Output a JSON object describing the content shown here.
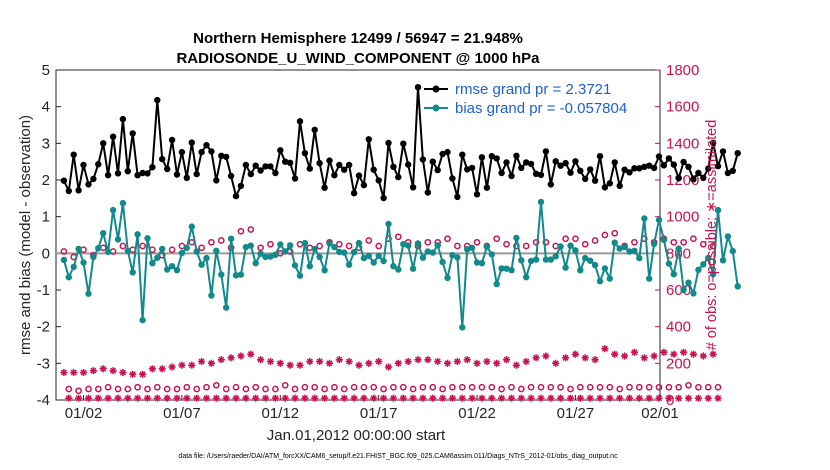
{
  "chart_data": {
    "type": "line",
    "title_line1": "Northern Hemisphere 12499 / 56947 = 21.948%",
    "title_line2": "RADIOSONDE_U_WIND_COMPONENT @ 1000 hPa",
    "ylabel_left": "rmse and bias (model - observation)",
    "ylabel_right": "# of obs: o=possible; ∗=assimilated",
    "xlabel": "Jan.01,2012 00:00:00 start",
    "footer": "data file: /Users/raeder/DAI/ATM_forcXX/CAM6_setup/f.e21.FHIST_BGC.f09_025.CAM6assim.011/Diags_NTrS_2012-01/obs_diag_output.nc",
    "ylim_left": [
      -4,
      5
    ],
    "ylim_right": [
      0,
      1800
    ],
    "xlim": [
      0.6,
      31.3
    ],
    "left_ticks": [
      "-4",
      "-3",
      "-2",
      "-1",
      "0",
      "1",
      "2",
      "3",
      "4",
      "5"
    ],
    "right_ticks": [
      "0",
      "200",
      "400",
      "600",
      "800",
      "1000",
      "1200",
      "1400",
      "1600",
      "1800"
    ],
    "x_tick_labels": [
      "01/02",
      "01/07",
      "01/12",
      "01/17",
      "01/22",
      "01/27",
      "02/01"
    ],
    "x_tick_days": [
      2,
      7,
      12,
      17,
      22,
      27,
      32
    ],
    "x_day_start": 1,
    "x_day_step": 0.25,
    "series": [
      {
        "name": "rmse grand pr = 2.3721",
        "axis": "left",
        "color": "#000000",
        "marker": "dot",
        "values": [
          1.98,
          1.7,
          2.69,
          1.72,
          2.41,
          1.88,
          2.03,
          2.43,
          3.0,
          2.13,
          3.18,
          2.18,
          3.66,
          2.24,
          3.27,
          2.13,
          2.19,
          2.18,
          2.35,
          4.18,
          2.57,
          2.3,
          3.09,
          2.15,
          2.76,
          2.06,
          3.02,
          2.16,
          2.76,
          2.95,
          2.78,
          1.99,
          2.66,
          2.63,
          2.11,
          1.56,
          1.84,
          2.41,
          2.16,
          2.39,
          2.26,
          2.37,
          2.37,
          2.19,
          2.81,
          2.5,
          2.47,
          2.04,
          3.6,
          2.73,
          2.31,
          3.37,
          2.46,
          1.79,
          2.53,
          2.13,
          2.41,
          2.28,
          2.41,
          1.64,
          2.12,
          1.86,
          3.11,
          2.28,
          1.99,
          1.51,
          3.01,
          2.36,
          2.08,
          2.99,
          2.42,
          1.8,
          4.53,
          2.56,
          1.66,
          2.5,
          2.27,
          2.71,
          2.76,
          2.04,
          1.54,
          2.69,
          2.29,
          2.33,
          1.61,
          2.62,
          1.79,
          2.65,
          2.59,
          2.19,
          2.48,
          2.11,
          2.66,
          2.33,
          2.48,
          2.44,
          2.17,
          2.14,
          2.78,
          1.88,
          2.51,
          2.39,
          2.46,
          2.2,
          2.51,
          2.25,
          2.03,
          2.29,
          1.98,
          2.65,
          1.8,
          1.91,
          2.48,
          1.84,
          2.28,
          2.21,
          2.32,
          2.32,
          2.36,
          2.39,
          2.33,
          2.64,
          2.4,
          2.59,
          2.42,
          2.05,
          2.49,
          2.36,
          2.02,
          2.19,
          2.06,
          2.31,
          3.01,
          2.38,
          2.78,
          2.19,
          2.25,
          2.73
        ]
      },
      {
        "name": "bias grand pr = -0.057804",
        "axis": "left",
        "color": "#138a8a",
        "marker": "dot",
        "values": [
          -0.18,
          -0.65,
          -0.37,
          0.12,
          -0.25,
          -1.1,
          -0.1,
          0.14,
          0.55,
          0.04,
          1.18,
          0.38,
          1.37,
          0.07,
          -0.52,
          0.52,
          -1.82,
          0.41,
          -0.27,
          -0.12,
          0.12,
          -0.44,
          -0.35,
          -0.46,
          0.01,
          0.15,
          0.73,
          0.05,
          -0.31,
          -0.13,
          -1.15,
          0.07,
          -0.58,
          -1.48,
          0.4,
          -0.6,
          -0.58,
          0.17,
          0.21,
          -0.27,
          -0.01,
          -0.1,
          -0.09,
          -0.04,
          0.24,
          0.05,
          0.22,
          -0.33,
          -0.61,
          0.28,
          -0.35,
          0.12,
          -0.1,
          -0.46,
          0.27,
          0.17,
          0.04,
          0.02,
          -0.31,
          0.03,
          0.28,
          -0.13,
          -0.07,
          -0.25,
          -0.07,
          -0.21,
          0.8,
          -0.35,
          -0.44,
          0.25,
          0.21,
          -0.42,
          0.27,
          -0.12,
          0.05,
          0.02,
          0.22,
          -0.24,
          -0.67,
          -0.05,
          -0.11,
          -2.02,
          0.11,
          0.15,
          -0.25,
          -0.27,
          0.18,
          -0.03,
          -0.84,
          -0.41,
          -0.42,
          -0.46,
          0.42,
          -0.19,
          -0.65,
          -0.21,
          -0.17,
          1.4,
          -0.17,
          -0.17,
          -0.08,
          0.19,
          -0.39,
          0.21,
          0.08,
          -0.46,
          -0.13,
          -0.2,
          -0.32,
          -0.76,
          -0.41,
          -0.69,
          0.29,
          0.13,
          0.17,
          0.05,
          0.07,
          -0.13,
          0.95,
          -0.69,
          0.26,
          0.91,
          0.37,
          -0.28,
          -0.57,
          0.13,
          -1.0,
          -0.8,
          -1.09,
          -0.45,
          -0.3,
          -0.13,
          -0.57,
          1.18,
          -0.19,
          0.46,
          0.06,
          -0.9
        ]
      },
      {
        "name": "possible",
        "axis": "right",
        "color": "#c8134f",
        "marker": "circle",
        "values": [
          810,
          60,
          780,
          50,
          820,
          60,
          790,
          60,
          830,
          70,
          810,
          60,
          840,
          60,
          820,
          70,
          840,
          60,
          820,
          70,
          790,
          60,
          820,
          60,
          840,
          70,
          860,
          60,
          830,
          70,
          860,
          80,
          870,
          60,
          830,
          70,
          920,
          60,
          930,
          70,
          830,
          60,
          850,
          60,
          800,
          80,
          810,
          60,
          850,
          70,
          830,
          70,
          840,
          60,
          860,
          70,
          850,
          60,
          840,
          70,
          830,
          70,
          870,
          70,
          840,
          60,
          880,
          70,
          890,
          70,
          860,
          60,
          840,
          70,
          860,
          70,
          860,
          60,
          880,
          70,
          840,
          70,
          840,
          70,
          860,
          70,
          840,
          70,
          880,
          60,
          850,
          70,
          840,
          60,
          840,
          70,
          860,
          70,
          860,
          70,
          840,
          70,
          880,
          60,
          880,
          70,
          850,
          70,
          870,
          70,
          900,
          70,
          910,
          60,
          840,
          70,
          860,
          70,
          880,
          70,
          860,
          70,
          880,
          70,
          860,
          70,
          860,
          80,
          880,
          70,
          850,
          70,
          840,
          70
        ]
      },
      {
        "name": "assimilated",
        "axis": "right",
        "color": "#c8134f",
        "marker": "star",
        "values": [
          150,
          10,
          150,
          10,
          150,
          10,
          160,
          10,
          170,
          10,
          160,
          10,
          150,
          10,
          140,
          10,
          140,
          10,
          170,
          10,
          170,
          10,
          180,
          10,
          190,
          10,
          190,
          10,
          210,
          10,
          200,
          10,
          220,
          10,
          230,
          10,
          240,
          10,
          250,
          10,
          220,
          10,
          210,
          10,
          200,
          10,
          190,
          10,
          190,
          10,
          210,
          10,
          210,
          10,
          200,
          10,
          220,
          10,
          210,
          10,
          190,
          10,
          200,
          10,
          210,
          10,
          180,
          10,
          200,
          10,
          210,
          10,
          220,
          10,
          220,
          10,
          210,
          10,
          200,
          10,
          210,
          10,
          220,
          10,
          200,
          10,
          210,
          10,
          200,
          10,
          220,
          10,
          190,
          10,
          210,
          10,
          230,
          10,
          240,
          10,
          200,
          10,
          230,
          10,
          250,
          10,
          230,
          10,
          220,
          10,
          280,
          10,
          250,
          10,
          240,
          10,
          260,
          10,
          230,
          10,
          240,
          10,
          260,
          10,
          250,
          10,
          260,
          10,
          250,
          10,
          240,
          10,
          250,
          10
        ]
      }
    ]
  }
}
